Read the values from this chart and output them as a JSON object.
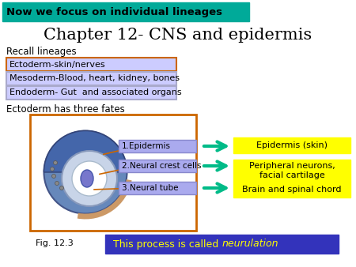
{
  "bg_color": "#ffffff",
  "title_banner_color": "#00aa99",
  "title_banner_text": "Now we focus on individual lineages",
  "title_banner_text_color": "#000000",
  "main_title": "Chapter 12- CNS and epidermis",
  "main_title_color": "#000000",
  "recall_label": "Recall lineages",
  "lineage_boxes": [
    {
      "text": "Ectoderm-skin/nerves",
      "bg": "#ccccff",
      "border": "#cc6600"
    },
    {
      "text": "Mesoderm-Blood, heart, kidney, bones",
      "bg": "#ccccff",
      "border": "#aaaacc"
    },
    {
      "text": "Endoderm- Gut  and associated organs",
      "bg": "#ccccff",
      "border": "#aaaacc"
    }
  ],
  "ectoderm_label": "Ectoderm has three fates",
  "fates_box_color": "#cc6600",
  "fate_labels": [
    {
      "text": "1.Epidermis",
      "bg": "#aaaaee"
    },
    {
      "text": "2.Neural crest cells",
      "bg": "#aaaaee"
    },
    {
      "text": "3.Neural tube",
      "bg": "#aaaaee"
    }
  ],
  "arrow_color": "#00bb88",
  "outcome_boxes": [
    {
      "text": "Epidermis (skin)",
      "bg": "#ffff00",
      "lines": 1
    },
    {
      "text": "Peripheral neurons,\nfacial cartilage",
      "bg": "#ffff00",
      "lines": 2
    },
    {
      "text": "Brain and spinal chord",
      "bg": "#ffff00",
      "lines": 1
    }
  ],
  "fig_label": "Fig. 12.3",
  "neurulation_box_bg": "#3333bb",
  "neurulation_text": "This process is called ",
  "neurulation_italic": "neurulation",
  "neurulation_text_color": "#ffff00"
}
